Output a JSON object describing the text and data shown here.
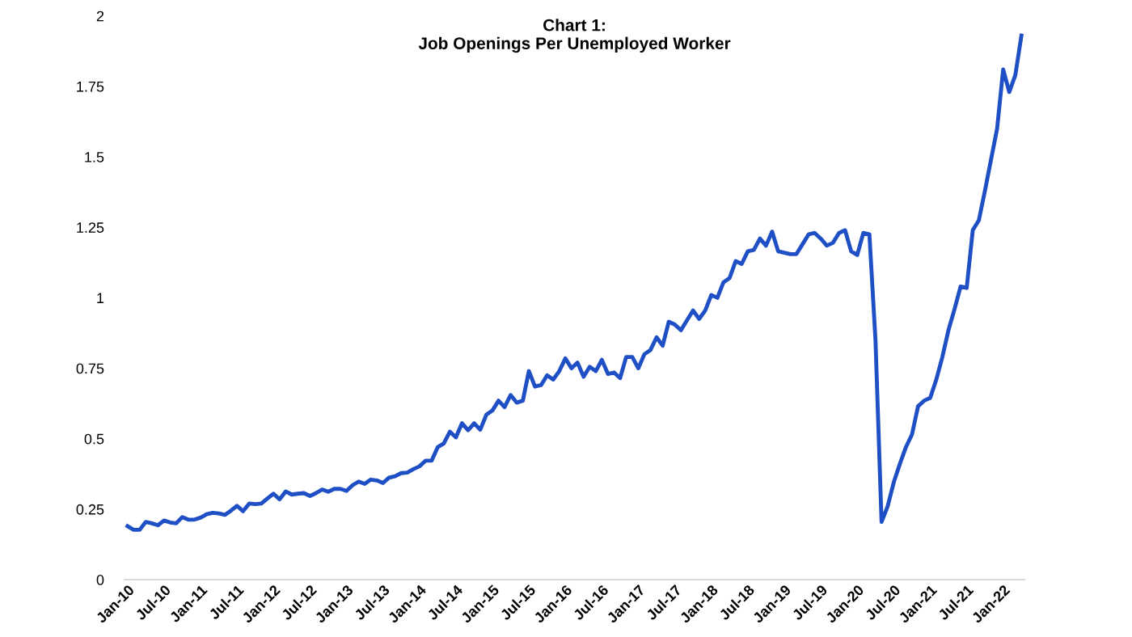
{
  "chart_data": {
    "type": "line",
    "title": "Chart 1:\nJob Openings Per Unemployed Worker",
    "categories": [
      "Jan-10",
      null,
      null,
      null,
      null,
      null,
      "Jul-10",
      null,
      null,
      null,
      null,
      null,
      "Jan-11",
      null,
      null,
      null,
      null,
      null,
      "Jul-11",
      null,
      null,
      null,
      null,
      null,
      "Jan-12",
      null,
      null,
      null,
      null,
      null,
      "Jul-12",
      null,
      null,
      null,
      null,
      null,
      "Jan-13",
      null,
      null,
      null,
      null,
      null,
      "Jul-13",
      null,
      null,
      null,
      null,
      null,
      "Jan-14",
      null,
      null,
      null,
      null,
      null,
      "Jul-14",
      null,
      null,
      null,
      null,
      null,
      "Jan-15",
      null,
      null,
      null,
      null,
      null,
      "Jul-15",
      null,
      null,
      null,
      null,
      null,
      "Jan-16",
      null,
      null,
      null,
      null,
      null,
      "Jul-16",
      null,
      null,
      null,
      null,
      null,
      "Jan-17",
      null,
      null,
      null,
      null,
      null,
      "Jul-17",
      null,
      null,
      null,
      null,
      null,
      "Jan-18",
      null,
      null,
      null,
      null,
      null,
      "Jul-18",
      null,
      null,
      null,
      null,
      null,
      "Jan-19",
      null,
      null,
      null,
      null,
      null,
      "Jul-19",
      null,
      null,
      null,
      null,
      null,
      "Jan-20",
      null,
      null,
      null,
      null,
      null,
      "Jul-20",
      null,
      null,
      null,
      null,
      null,
      "Jan-21",
      null,
      null,
      null,
      null,
      null,
      "Jul-21",
      null,
      null,
      null,
      null,
      null,
      "Jan-22",
      null,
      null,
      null
    ],
    "series": [
      {
        "color": "#1f4fc4",
        "values": [
          0.19,
          0.177,
          0.177,
          0.205,
          0.2,
          0.193,
          0.21,
          0.203,
          0.2,
          0.222,
          0.213,
          0.213,
          0.22,
          0.232,
          0.237,
          0.235,
          0.23,
          0.245,
          0.262,
          0.243,
          0.27,
          0.268,
          0.27,
          0.288,
          0.305,
          0.285,
          0.313,
          0.302,
          0.305,
          0.307,
          0.297,
          0.307,
          0.32,
          0.312,
          0.322,
          0.322,
          0.315,
          0.335,
          0.348,
          0.34,
          0.355,
          0.352,
          0.343,
          0.362,
          0.367,
          0.378,
          0.38,
          0.392,
          0.402,
          0.422,
          0.422,
          0.47,
          0.483,
          0.525,
          0.505,
          0.555,
          0.53,
          0.555,
          0.532,
          0.585,
          0.6,
          0.635,
          0.612,
          0.655,
          0.628,
          0.635,
          0.74,
          0.685,
          0.69,
          0.725,
          0.71,
          0.74,
          0.785,
          0.75,
          0.77,
          0.72,
          0.755,
          0.74,
          0.78,
          0.73,
          0.735,
          0.715,
          0.79,
          0.79,
          0.75,
          0.8,
          0.815,
          0.86,
          0.83,
          0.915,
          0.905,
          0.885,
          0.92,
          0.955,
          0.925,
          0.955,
          1.01,
          1.0,
          1.055,
          1.07,
          1.13,
          1.12,
          1.165,
          1.17,
          1.21,
          1.185,
          1.235,
          1.165,
          1.16,
          1.155,
          1.155,
          1.19,
          1.225,
          1.23,
          1.21,
          1.185,
          1.195,
          1.23,
          1.24,
          1.165,
          1.152,
          1.23,
          1.225,
          0.85,
          0.205,
          0.26,
          0.345,
          0.41,
          0.47,
          0.515,
          0.615,
          0.635,
          0.645,
          0.71,
          0.79,
          0.885,
          0.96,
          1.04,
          1.035,
          1.24,
          1.275,
          1.38,
          1.49,
          1.6,
          1.81,
          1.73,
          1.79,
          1.93
        ]
      }
    ],
    "ylim": [
      0,
      2
    ],
    "yticks": [
      0,
      0.25,
      0.5,
      0.75,
      1,
      1.25,
      1.5,
      1.75,
      2
    ],
    "grid": false,
    "legend": false,
    "marker": "none",
    "line_style": "solid"
  }
}
